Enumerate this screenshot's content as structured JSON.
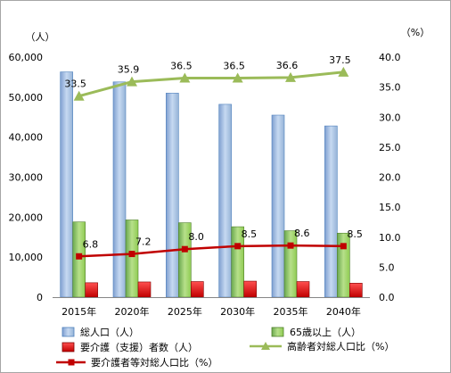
{
  "chart_data": {
    "type": "bar",
    "categories": [
      "2015年",
      "2020年",
      "2025年",
      "2030年",
      "2035年",
      "2040年"
    ],
    "y_left": {
      "unit": "（人）",
      "min": 0,
      "max": 60000,
      "step": 10000,
      "ticks": [
        "0",
        "10,000",
        "20,000",
        "30,000",
        "40,000",
        "50,000",
        "60,000"
      ]
    },
    "y_right": {
      "unit": "（%）",
      "min": 0,
      "max": 40,
      "step": 5,
      "ticks": [
        "0.0",
        "5.0",
        "10.0",
        "15.0",
        "20.0",
        "25.0",
        "30.0",
        "35.0",
        "40.0"
      ]
    },
    "series": [
      {
        "name": "総人口（人）",
        "kind": "bar",
        "axis": "left",
        "color": "#95b3d7",
        "values": [
          56300,
          53800,
          51000,
          48200,
          45500,
          42800
        ]
      },
      {
        "name": "65歳以上（人）",
        "kind": "bar",
        "axis": "left",
        "color": "#92d050",
        "values": [
          18800,
          19300,
          18600,
          17600,
          16600,
          16000
        ]
      },
      {
        "name": "要介護（支援）者数（人）",
        "kind": "bar",
        "axis": "left",
        "color": "#e81e25",
        "values": [
          3600,
          3800,
          3900,
          4000,
          3900,
          3500
        ]
      },
      {
        "name": "高齢者対総人口比（%）",
        "kind": "line",
        "axis": "right",
        "color": "#9bbb59",
        "marker": "triangle",
        "values": [
          33.5,
          35.9,
          36.5,
          36.5,
          36.6,
          37.5
        ],
        "labels": [
          "33.5",
          "35.9",
          "36.5",
          "36.5",
          "36.6",
          "37.5"
        ]
      },
      {
        "name": "要介護者等対総人口比（%）",
        "kind": "line",
        "axis": "right",
        "color": "#c00000",
        "marker": "square",
        "values": [
          6.8,
          7.2,
          8.0,
          8.5,
          8.6,
          8.5
        ],
        "labels": [
          "6.8",
          "7.2",
          "8.0",
          "8.5",
          "8.6",
          "8.5"
        ]
      }
    ],
    "legend_position": "bottom",
    "grid": false
  }
}
